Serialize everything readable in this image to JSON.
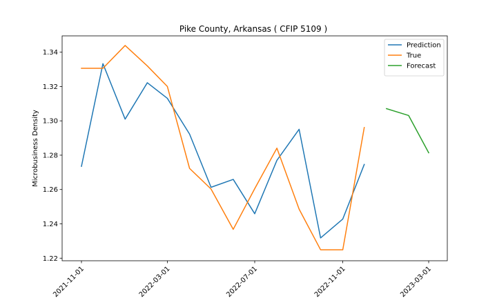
{
  "chart_data": {
    "type": "line",
    "title": "Pike County, Arkansas ( CFIP 5109 )",
    "xlabel": "",
    "ylabel": "Microbusiness Density",
    "x_axis_type": "date",
    "xlim": [
      "2021-10-05",
      "2023-03-27"
    ],
    "ylim": [
      1.2185,
      1.3495
    ],
    "x_ticks": [
      "2021-11-01",
      "2022-03-01",
      "2022-07-01",
      "2022-11-01",
      "2023-03-01"
    ],
    "y_ticks": [
      1.22,
      1.24,
      1.26,
      1.28,
      1.3,
      1.32,
      1.34
    ],
    "y_tick_labels": [
      "1.22",
      "1.24",
      "1.26",
      "1.28",
      "1.30",
      "1.32",
      "1.34"
    ],
    "grid": false,
    "legend_position": "top-right",
    "series": [
      {
        "name": "Prediction",
        "color": "#1f77b4",
        "x": [
          "2021-11-01",
          "2021-12-01",
          "2022-01-01",
          "2022-02-01",
          "2022-03-01",
          "2022-04-01",
          "2022-05-01",
          "2022-06-01",
          "2022-07-01",
          "2022-08-01",
          "2022-09-01",
          "2022-10-01",
          "2022-11-01",
          "2022-12-01"
        ],
        "values": [
          1.2735,
          1.3333,
          1.301,
          1.3222,
          1.3131,
          1.2923,
          1.2613,
          1.2659,
          1.2459,
          1.277,
          1.2951,
          1.2318,
          1.2428,
          1.2746
        ]
      },
      {
        "name": "True",
        "color": "#ff7f0e",
        "x": [
          "2021-11-01",
          "2021-12-01",
          "2022-01-01",
          "2022-02-01",
          "2022-03-01",
          "2022-04-01",
          "2022-05-01",
          "2022-06-01",
          "2022-07-01",
          "2022-08-01",
          "2022-09-01",
          "2022-10-01",
          "2022-11-01",
          "2022-12-01"
        ],
        "values": [
          1.3306,
          1.3306,
          1.3439,
          1.332,
          1.32,
          1.2723,
          1.2603,
          1.2368,
          1.2605,
          1.2841,
          1.2486,
          1.2249,
          1.2249,
          1.2961
        ]
      },
      {
        "name": "Forecast",
        "color": "#2ca02c",
        "x": [
          "2023-01-01",
          "2023-02-01",
          "2023-03-01"
        ],
        "values": [
          1.3071,
          1.3031,
          1.2814
        ]
      }
    ]
  }
}
